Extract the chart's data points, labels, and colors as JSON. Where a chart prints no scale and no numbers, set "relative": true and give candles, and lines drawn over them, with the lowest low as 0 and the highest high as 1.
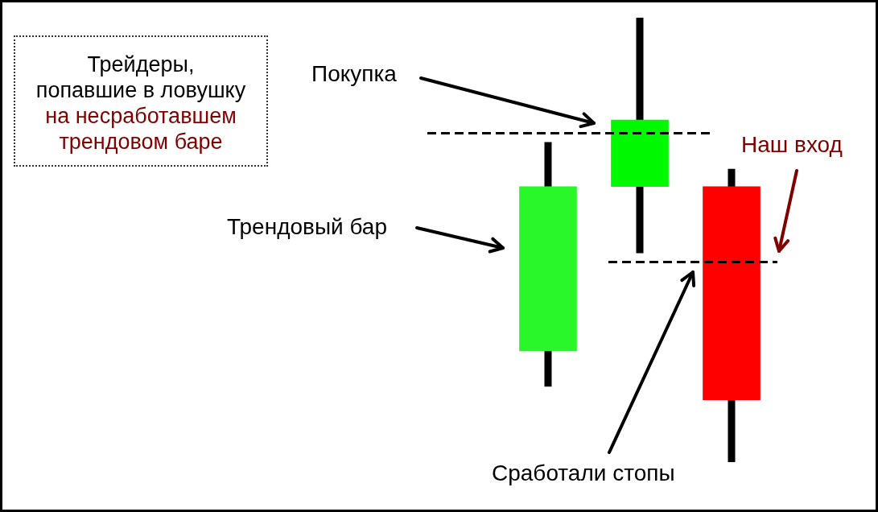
{
  "chart_data": {
    "type": "candlestick",
    "relative": true,
    "tick_labels": false,
    "title": "Трейдеры,\nпопавшие в ловушку",
    "subtitle": "на несработавшем\nтрендовом баре",
    "categories": [
      null,
      null,
      null
    ],
    "ohlc": [
      [
        0.25,
        0.72,
        0.17,
        0.62
      ],
      [
        0.62,
        1,
        0.47,
        0.77
      ],
      [
        0.62,
        0.66,
        0,
        0.14
      ]
    ],
    "colors": [
      "#2af72a",
      "#00f800",
      "#ff0000"
    ],
    "ref_lines": [
      {
        "axis": "y",
        "value": 0.74,
        "color": "#000000",
        "line_style": "dashed"
      },
      {
        "axis": "y",
        "value": 0.45,
        "color": "#000000",
        "line_style": "dashed"
      }
    ],
    "annotations": [
      "Покупка",
      "Трендовый бар",
      "Наш вход",
      "Сработали стопы"
    ]
  }
}
